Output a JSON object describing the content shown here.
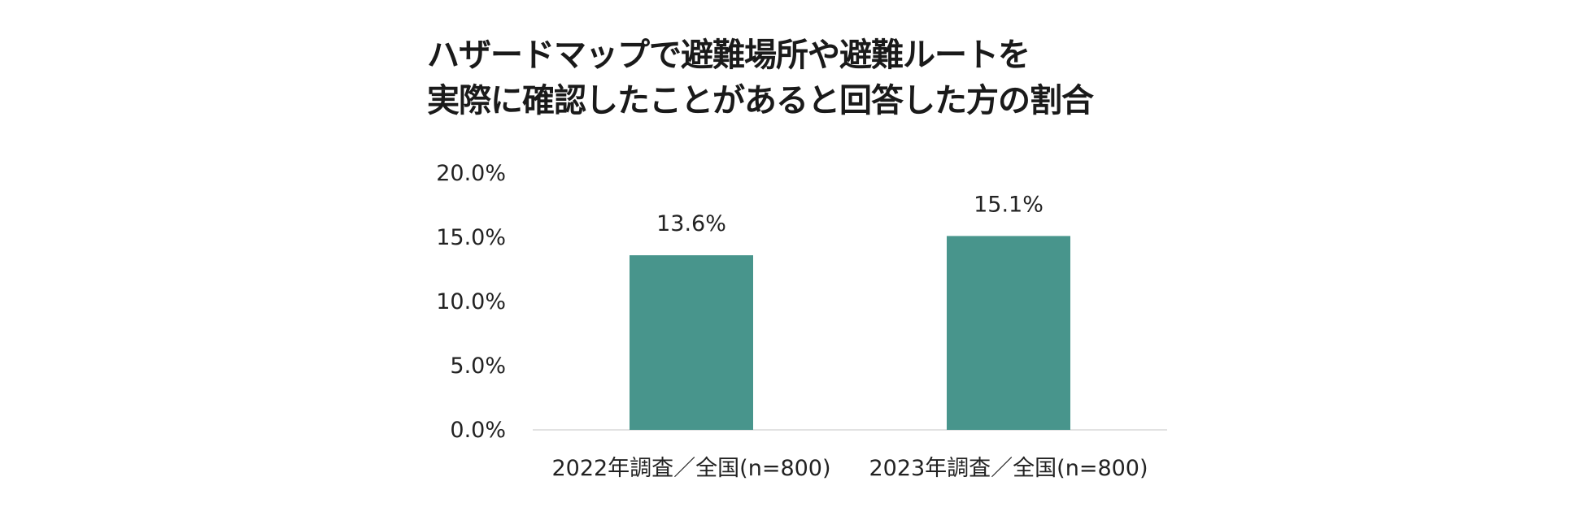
{
  "chart_data": {
    "type": "bar",
    "title_lines": [
      "ハザードマップで避難場所や避難ルートを",
      "実際に確認したことがあると回答した方の割合"
    ],
    "categories": [
      "2022年調査／全国(n=800)",
      "2023年調査／全国(n=800)"
    ],
    "values": [
      13.6,
      15.1
    ],
    "data_labels": [
      "13.6%",
      "15.1%"
    ],
    "y_ticks": [
      0,
      5,
      10,
      15,
      20
    ],
    "y_tick_labels": [
      "0.0%",
      "5.0%",
      "10.0%",
      "15.0%",
      "20.0%"
    ],
    "ylim": [
      0,
      20
    ],
    "xlabel": "",
    "ylabel": "",
    "grid": false,
    "legend": "none",
    "colors": {
      "bar": "#48958C",
      "axis": "#D9D9D9",
      "text": "#222222"
    }
  }
}
